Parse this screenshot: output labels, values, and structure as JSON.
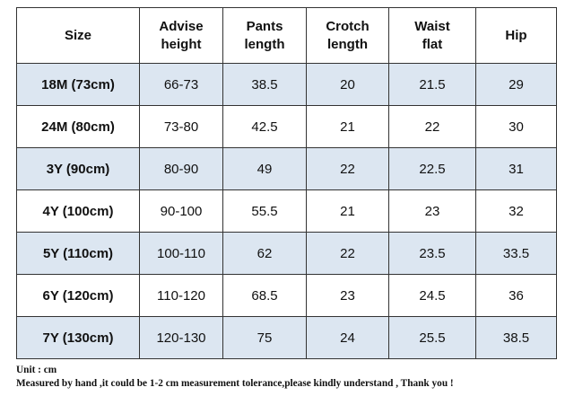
{
  "table": {
    "header": [
      [
        "Size"
      ],
      [
        "Advise",
        "height"
      ],
      [
        "Pants",
        "length"
      ],
      [
        "Crotch",
        "length"
      ],
      [
        "Waist",
        "flat"
      ],
      [
        "Hip"
      ]
    ],
    "rows": [
      [
        "18M (73cm)",
        "66-73",
        "38.5",
        "20",
        "21.5",
        "29"
      ],
      [
        "24M (80cm)",
        "73-80",
        "42.5",
        "21",
        "22",
        "30"
      ],
      [
        "3Y (90cm)",
        "80-90",
        "49",
        "22",
        "22.5",
        "31"
      ],
      [
        "4Y (100cm)",
        "90-100",
        "55.5",
        "21",
        "23",
        "32"
      ],
      [
        "5Y (110cm)",
        "100-110",
        "62",
        "22",
        "23.5",
        "33.5"
      ],
      [
        "6Y (120cm)",
        "110-120",
        "68.5",
        "23",
        "24.5",
        "36"
      ],
      [
        "7Y (130cm)",
        "120-130",
        "75",
        "24",
        "25.5",
        "38.5"
      ]
    ]
  },
  "footer": {
    "unit": "Unit : cm",
    "note": "Measured by hand ,it could be 1-2 cm measurement tolerance,please kindly understand , Thank you !"
  }
}
